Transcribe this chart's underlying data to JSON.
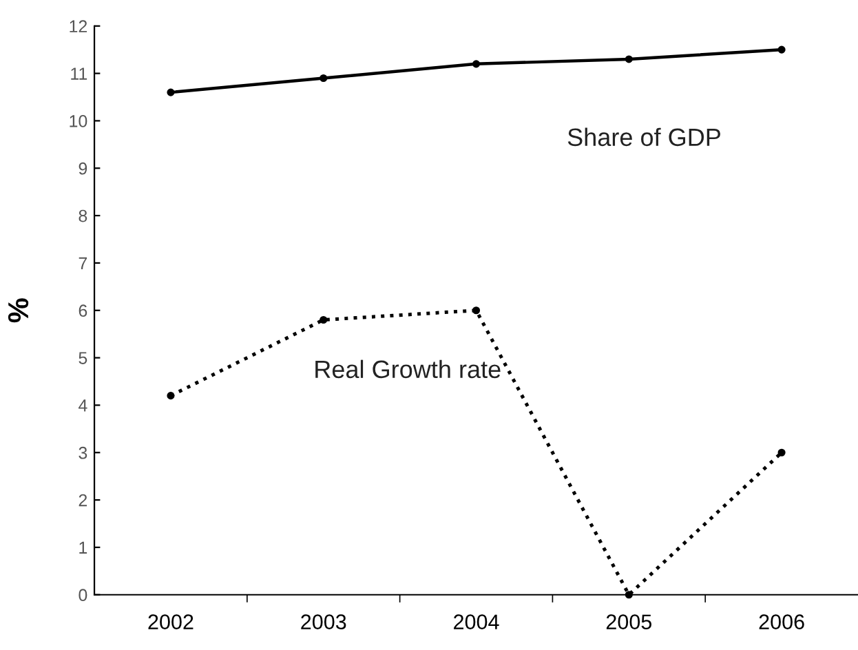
{
  "chart_data": {
    "type": "line",
    "ylabel": "%",
    "categories": [
      "2002",
      "2003",
      "2004",
      "2005",
      "2006"
    ],
    "ylim": [
      0,
      12
    ],
    "yticks": [
      0,
      1,
      2,
      3,
      4,
      5,
      6,
      7,
      8,
      9,
      10,
      11,
      12
    ],
    "grid": false,
    "legend": false,
    "marker": "circle",
    "series": [
      {
        "name": "Share of GDP",
        "color": "#000000",
        "line_style": "solid",
        "values": [
          10.6,
          10.9,
          11.2,
          11.3,
          11.5
        ]
      },
      {
        "name": "Real Growth rate",
        "color": "#000000",
        "line_style": "dotted",
        "values": [
          4.2,
          5.8,
          6.0,
          0,
          3.0
        ]
      }
    ]
  }
}
